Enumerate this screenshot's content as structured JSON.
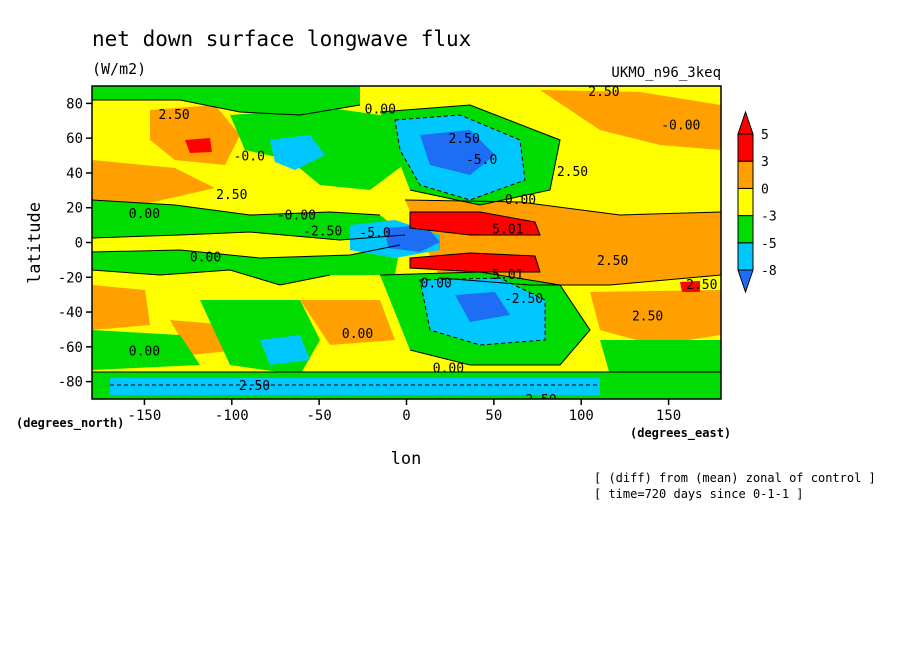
{
  "chart_data": {
    "type": "heatmap",
    "title": "net down surface longwave flux",
    "units": "(W/m2)",
    "model_label": "UKMO_n96_3keq",
    "xlabel": "lon",
    "ylabel": "latitude",
    "x_units": "(degrees_east)",
    "y_units": "(degrees_north)",
    "xlim": [
      -180,
      180
    ],
    "ylim": [
      -90,
      90
    ],
    "x_ticks": [
      -150,
      -100,
      -50,
      0,
      50,
      100,
      150
    ],
    "x_tick_labels": [
      "-150",
      "-100",
      "-50",
      "0",
      "50",
      "100",
      "150"
    ],
    "y_ticks": [
      -80,
      -60,
      -40,
      -20,
      0,
      20,
      40,
      60,
      80
    ],
    "y_tick_labels": [
      "-80",
      "-60",
      "-40",
      "-20",
      "0",
      "20",
      "40",
      "60",
      "80"
    ],
    "legend": {
      "placement": "right",
      "levels": [
        -8,
        -5,
        -3,
        0,
        3,
        5
      ],
      "level_labels": [
        "-8",
        "-5",
        "-3",
        "0",
        "3",
        "5"
      ],
      "colors": [
        "#1e6ef5",
        "#00c8ff",
        "#00dc00",
        "#ffff00",
        "#ffa000",
        "#ff0000",
        "#ff0000"
      ]
    },
    "contour_labels": [
      {
        "text": "2.50",
        "lon": -133,
        "lat": 74
      },
      {
        "text": "0.00",
        "lon": -15,
        "lat": 77
      },
      {
        "text": "2.50",
        "lon": 113,
        "lat": 87
      },
      {
        "text": "-0.00",
        "lon": 157,
        "lat": 68
      },
      {
        "text": "2.50",
        "lon": 33,
        "lat": 60
      },
      {
        "text": "-5.0",
        "lon": 43,
        "lat": 48
      },
      {
        "text": "-0.0",
        "lon": -90,
        "lat": 50
      },
      {
        "text": "2.50",
        "lon": 95,
        "lat": 41
      },
      {
        "text": "2.50",
        "lon": -100,
        "lat": 28
      },
      {
        "text": "0.00",
        "lon": -150,
        "lat": 17
      },
      {
        "text": "-0.00",
        "lon": -63,
        "lat": 16
      },
      {
        "text": "-0.00",
        "lon": 63,
        "lat": 25
      },
      {
        "text": "-2.50",
        "lon": -48,
        "lat": 7
      },
      {
        "text": "-5.0",
        "lon": -18,
        "lat": 6
      },
      {
        "text": "5.01",
        "lon": 58,
        "lat": 8
      },
      {
        "text": "0.00",
        "lon": -115,
        "lat": -8
      },
      {
        "text": "2.50",
        "lon": 118,
        "lat": -10
      },
      {
        "text": "0.00",
        "lon": 17,
        "lat": -23
      },
      {
        "text": "5.01",
        "lon": 58,
        "lat": -18
      },
      {
        "text": "-2.50",
        "lon": 67,
        "lat": -32
      },
      {
        "text": "2.50",
        "lon": 169,
        "lat": -24
      },
      {
        "text": "2.50",
        "lon": 138,
        "lat": -42
      },
      {
        "text": "0.00",
        "lon": -28,
        "lat": -52
      },
      {
        "text": "0.00",
        "lon": -150,
        "lat": -62
      },
      {
        "text": "0.00",
        "lon": 24,
        "lat": -72
      },
      {
        "text": "2.50",
        "lon": -87,
        "lat": -82
      },
      {
        "text": "2.50",
        "lon": 77,
        "lat": -90
      }
    ]
  },
  "footnotes": {
    "line1": "[ (diff) from (mean) zonal of control ]",
    "line2": "[ time=720 days since 0-1-1 ]"
  }
}
